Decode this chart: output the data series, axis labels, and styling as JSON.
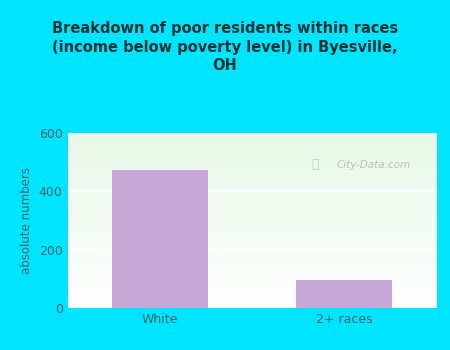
{
  "title": "Breakdown of poor residents within races\n(income below poverty level) in Byesville,\nOH",
  "categories": [
    "White",
    "2+ races"
  ],
  "values": [
    473,
    97
  ],
  "bar_color": "#c8a8d8",
  "ylabel": "absolute numbers",
  "ylim": [
    0,
    600
  ],
  "yticks": [
    0,
    200,
    400,
    600
  ],
  "background_outer": "#00e5ff",
  "background_inner": "#e8f5e2",
  "grid_color": "#e0ece0",
  "watermark": "City-Data.com",
  "title_color": "#003333",
  "axis_color": "#336666",
  "title_fontsize": 10.5
}
